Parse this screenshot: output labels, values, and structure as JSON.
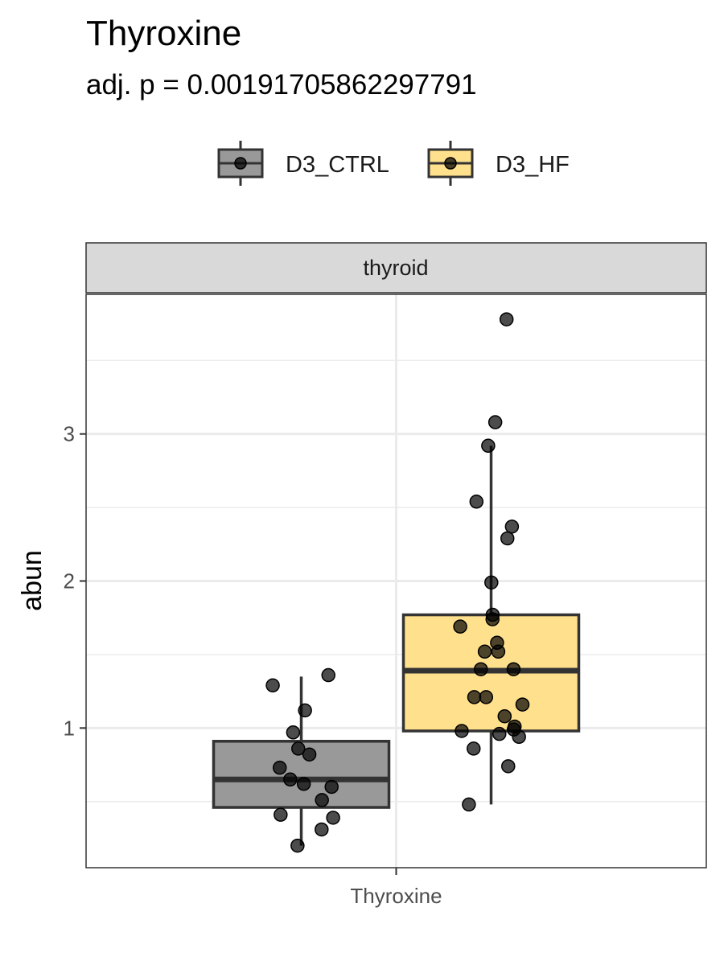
{
  "chart_data": {
    "type": "box",
    "title": "Thyroxine",
    "subtitle": "adj. p = 0.00191705862297791",
    "facet": "thyroid",
    "xlabel": "",
    "ylabel": "abun",
    "categories": [
      "Thyroxine"
    ],
    "yticks": [
      1,
      2,
      3
    ],
    "ylim": [
      0.05,
      3.95
    ],
    "grid": true,
    "legend_position": "top",
    "series": [
      {
        "name": "D3_CTRL",
        "color": "#999999",
        "box": {
          "whisker_low": 0.2,
          "q1": 0.46,
          "median": 0.65,
          "q3": 0.91,
          "whisker_high": 1.35
        },
        "points": [
          1.36,
          1.29,
          1.12,
          0.97,
          0.86,
          0.82,
          0.73,
          0.65,
          0.62,
          0.6,
          0.51,
          0.41,
          0.39,
          0.31,
          0.2
        ]
      },
      {
        "name": "D3_HF",
        "color": "#FFE08C",
        "box": {
          "whisker_low": 0.48,
          "q1": 0.98,
          "median": 1.39,
          "q3": 1.77,
          "whisker_high": 2.92
        },
        "points": [
          3.78,
          3.08,
          2.92,
          2.54,
          2.37,
          2.29,
          1.99,
          1.77,
          1.74,
          1.69,
          1.58,
          1.52,
          1.52,
          1.4,
          1.4,
          1.21,
          1.21,
          1.16,
          1.08,
          1.01,
          0.99,
          0.98,
          0.96,
          0.94,
          0.86,
          0.74,
          0.48
        ]
      }
    ]
  }
}
